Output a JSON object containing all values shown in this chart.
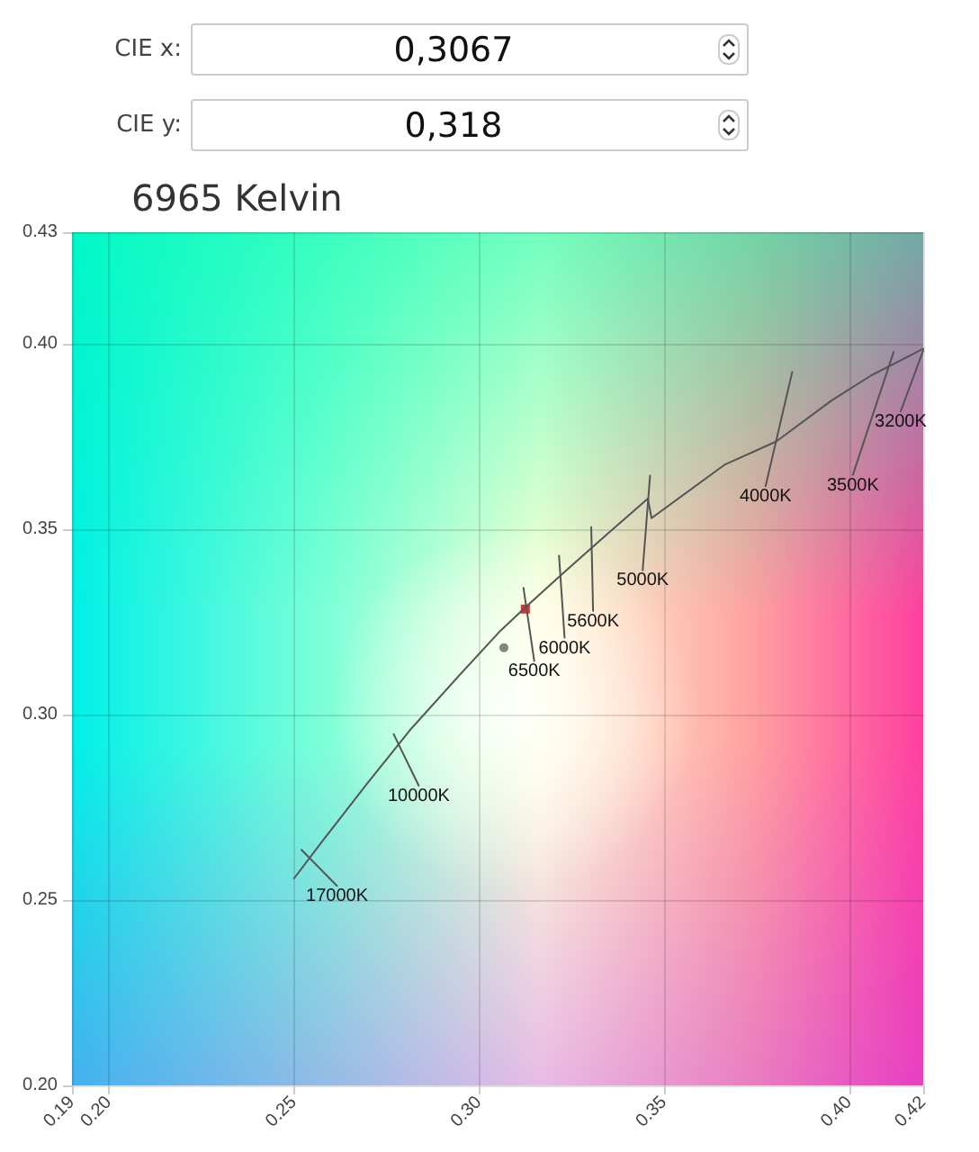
{
  "chart_data": {
    "type": "line",
    "title": "6965 Kelvin",
    "xlim": [
      0.19,
      0.42
    ],
    "ylim": [
      0.2,
      0.43
    ],
    "xticks": [
      0.19,
      {
        "value": 0.2,
        "label": "0.20"
      },
      0.25,
      {
        "value": 0.3,
        "label": "0.30"
      },
      0.35,
      {
        "value": 0.4,
        "label": "0.40"
      },
      0.42
    ],
    "yticks": [
      {
        "value": 0.2,
        "label": "0.20"
      },
      0.25,
      {
        "value": 0.3,
        "label": "0.30"
      },
      0.35,
      {
        "value": 0.4,
        "label": "0.40"
      },
      0.43
    ],
    "grid": true,
    "series": [
      {
        "type": "line",
        "color": "#555555",
        "x": [
          0.25,
          0.2577,
          0.2697,
          0.2817,
          0.2938,
          0.3058,
          0.312,
          0.3226,
          0.3346,
          0.3456,
          0.3466,
          0.3663,
          0.3803,
          0.3952,
          0.4058,
          0.42
        ],
        "values": [
          0.2558,
          0.2659,
          0.2813,
          0.2962,
          0.3096,
          0.3226,
          0.3284,
          0.338,
          0.3486,
          0.3582,
          0.3529,
          0.3673,
          0.3736,
          0.3846,
          0.3913,
          0.3986
        ]
      },
      {
        "type": "line",
        "name": "17000K",
        "color": "#555555",
        "x": [
          0.252,
          0.2616
        ],
        "values": [
          0.2635,
          0.2538
        ]
      },
      {
        "type": "line",
        "name": "10000K",
        "color": "#555555",
        "x": [
          0.2769,
          0.2837
        ],
        "values": [
          0.2947,
          0.2808
        ]
      },
      {
        "type": "line",
        "name": "6500K",
        "color": "#555555",
        "x": [
          0.312,
          0.3149
        ],
        "values": [
          0.3341,
          0.3144
        ]
      },
      {
        "type": "line",
        "name": "6000K",
        "color": "#555555",
        "x": [
          0.3216,
          0.3231
        ],
        "values": [
          0.3428,
          0.3207
        ]
      },
      {
        "type": "line",
        "name": "5600K",
        "color": "#555555",
        "x": [
          0.3303,
          0.3308
        ],
        "values": [
          0.3505,
          0.3279
        ]
      },
      {
        "type": "line",
        "name": "5000K",
        "color": "#555555",
        "x": [
          0.3462,
          0.3442
        ],
        "values": [
          0.3644,
          0.3389
        ]
      },
      {
        "type": "line",
        "name": "4000K",
        "color": "#555555",
        "x": [
          0.3846,
          0.3774
        ],
        "values": [
          0.3923,
          0.3615
        ]
      },
      {
        "type": "line",
        "name": "3500K",
        "color": "#555555",
        "x": [
          0.412,
          0.401
        ],
        "values": [
          0.3977,
          0.3646
        ]
      },
      {
        "type": "line",
        "name": "3200K",
        "color": "#555555",
        "x": [
          0.42,
          0.4139
        ],
        "values": [
          0.3981,
          0.3817
        ]
      },
      {
        "type": "scatter",
        "color": "#e00000",
        "marker": "square",
        "x": [
          0.3125
        ],
        "values": [
          0.3284
        ]
      },
      {
        "type": "scatter",
        "color": "#666666",
        "marker": "circle",
        "x": [
          0.3067
        ],
        "values": [
          0.318
        ]
      }
    ],
    "annotations": [
      "CIE x:",
      "0,3067",
      "CIE y:",
      "0,318"
    ]
  }
}
